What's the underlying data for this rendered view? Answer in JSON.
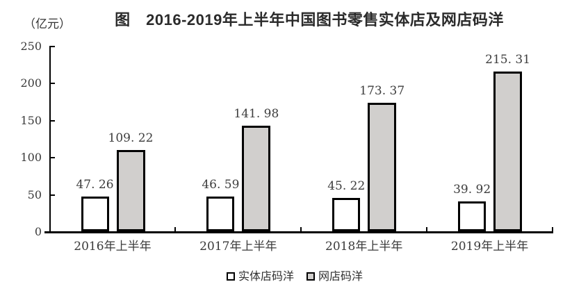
{
  "title": "图　2016-2019年上半年中国图书零售实体店及网店码洋",
  "unit_label": "（亿元）",
  "colors": {
    "physical_store_fill": "#ffffff",
    "online_store_fill": "#d1cfcd",
    "bar_border": "#000000",
    "axis": "#000000"
  },
  "chart_data": {
    "type": "bar",
    "title": "图　2016-2019年上半年中国图书零售实体店及网店码洋",
    "ylabel": "（亿元）",
    "categories": [
      "2016年上半年",
      "2017年上半年",
      "2018年上半年",
      "2019年上半年"
    ],
    "series": [
      {
        "name": "实体店码洋",
        "fill": "#ffffff",
        "values": [
          47.26,
          46.59,
          45.22,
          39.92
        ],
        "labels": [
          "47. 26",
          "46. 59",
          "45. 22",
          "39. 92"
        ]
      },
      {
        "name": "网店码洋",
        "fill": "#d1cfcd",
        "values": [
          109.22,
          141.98,
          173.37,
          215.31
        ],
        "labels": [
          "109. 22",
          "141. 98",
          "173. 37",
          "215. 31"
        ]
      }
    ],
    "yticks": [
      0,
      50,
      100,
      150,
      200,
      250
    ],
    "ylim": [
      0,
      250
    ],
    "grid": false,
    "legend_position": "bottom"
  }
}
